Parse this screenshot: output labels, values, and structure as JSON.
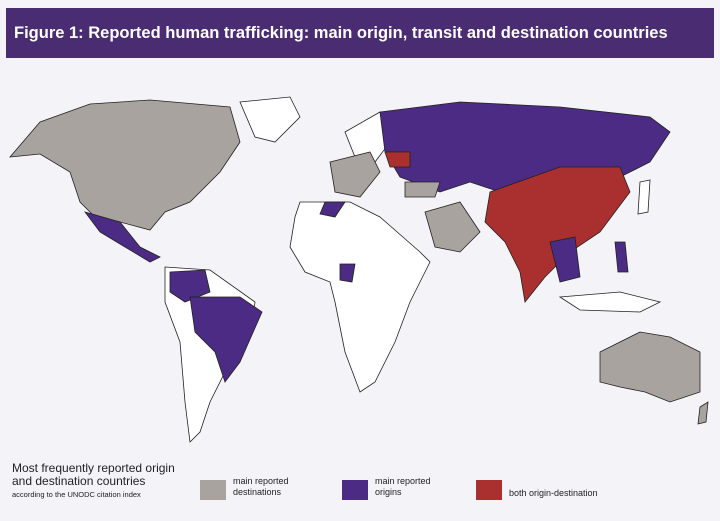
{
  "header": {
    "title": "Figure 1: Reported human trafficking: main origin, transit and destination countries"
  },
  "legend": {
    "title": "Most frequently reported origin and destination countries",
    "subtitle": "according to the UNODC citation index",
    "items": [
      {
        "label": "main reported destinations",
        "color": "#a8a39e"
      },
      {
        "label": "main reported origins",
        "color": "#4b2b84"
      },
      {
        "label": "both origin-destination",
        "color": "#a9302e"
      }
    ]
  }
}
